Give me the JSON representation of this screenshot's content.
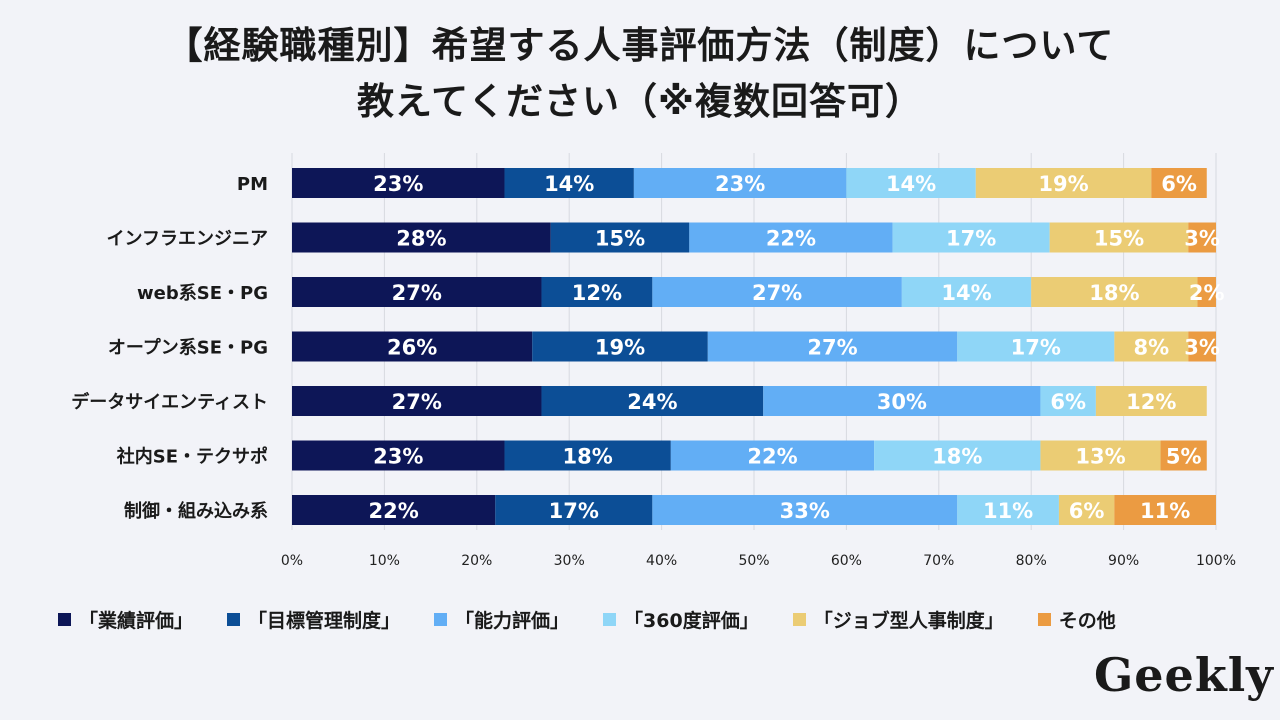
{
  "title": {
    "line1": "【経験職種別】希望する人事評価方法（制度）について",
    "line2": "教えてください（※複数回答可）"
  },
  "chart_data": {
    "type": "bar",
    "orientation": "horizontal",
    "stacked": true,
    "percent": true,
    "categories": [
      "PM",
      "インフラエンジニア",
      "web系SE・PG",
      "オープン系SE・PG",
      "データサイエンティスト",
      "社内SE・テクサポ",
      "制御・組み込み系"
    ],
    "series": [
      {
        "name": "「業績評価」",
        "color": "#0d1657",
        "values": [
          23,
          28,
          27,
          26,
          27,
          23,
          22
        ]
      },
      {
        "name": "「目標管理制度」",
        "color": "#0c4e96",
        "values": [
          14,
          15,
          12,
          19,
          24,
          18,
          17
        ]
      },
      {
        "name": "「能力評価」",
        "color": "#62aef5",
        "values": [
          23,
          22,
          27,
          27,
          30,
          22,
          33
        ]
      },
      {
        "name": "「360度評価」",
        "color": "#8fd6f7",
        "values": [
          14,
          17,
          14,
          17,
          6,
          18,
          11
        ]
      },
      {
        "name": "「ジョブ型人事制度」",
        "color": "#ebcc74",
        "values": [
          19,
          15,
          18,
          8,
          12,
          13,
          6
        ]
      },
      {
        "name": "その他",
        "color": "#eb9b42",
        "values": [
          6,
          3,
          2,
          3,
          0,
          5,
          11
        ]
      }
    ],
    "xlim": [
      0,
      100
    ],
    "xticks": [
      "0%",
      "10%",
      "20%",
      "30%",
      "40%",
      "50%",
      "60%",
      "70%",
      "80%",
      "90%",
      "100%"
    ],
    "grid": true,
    "legend": "bottom"
  },
  "logo": "Geekly"
}
